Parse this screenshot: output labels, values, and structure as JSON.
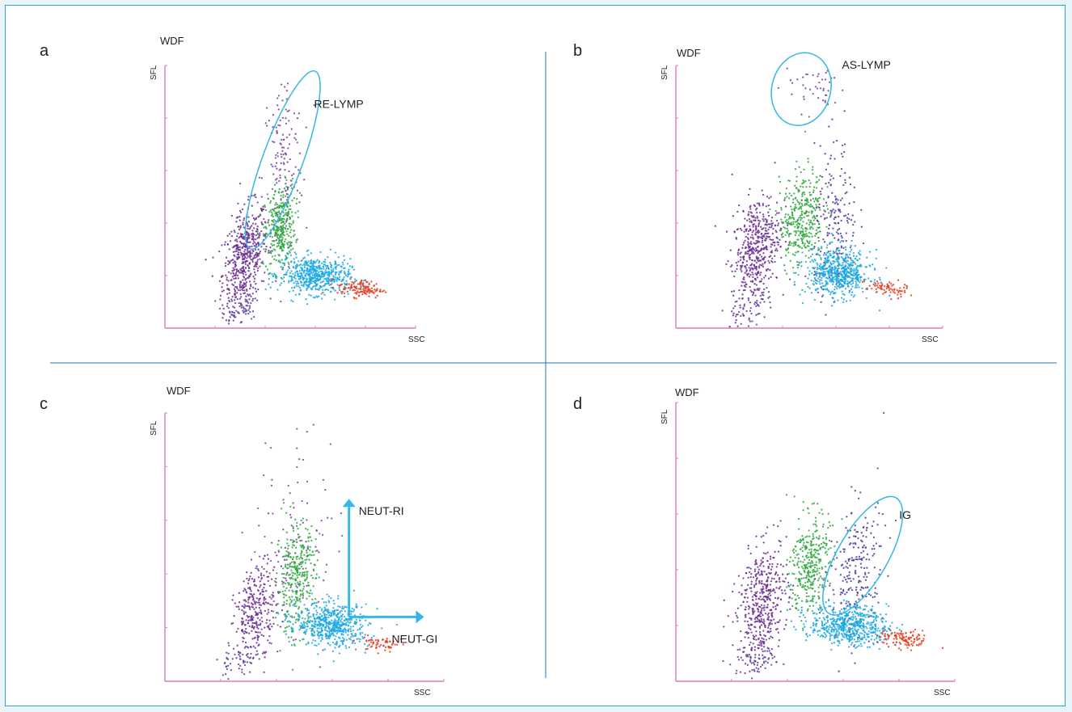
{
  "colors": {
    "background": "#e7f5fc",
    "border": "#2f9fd6",
    "divider": "#1f74b6",
    "axis": "#d47fb6",
    "annotation": "#35b7e6",
    "lymph": "#6a2c91",
    "mono": "#2ca63c",
    "neut": "#19a8e3",
    "eos": "#e2391b",
    "ig": "#4a3a9a"
  },
  "chart_data": [
    {
      "panel_letter": "a",
      "type": "scatter",
      "title": "WDF",
      "xlabel": "SSC",
      "ylabel": "SFL",
      "xlim": [
        0,
        100
      ],
      "ylim": [
        0,
        100
      ],
      "grid": false,
      "clusters": [
        {
          "population": "lymphocytes",
          "color": "#6a2c91",
          "center": [
            32,
            27
          ],
          "spread": [
            4.5,
            9
          ],
          "tilt": 0.6,
          "n": 520
        },
        {
          "population": "re-lymp",
          "color": "#7a3fa0",
          "center": [
            47,
            62
          ],
          "spread": [
            4,
            18
          ],
          "tilt": 0.25,
          "n": 150
        },
        {
          "population": "monocytes",
          "color": "#2ca63c",
          "center": [
            46,
            38
          ],
          "spread": [
            3,
            8
          ],
          "tilt": 0.3,
          "n": 330
        },
        {
          "population": "neutrophils",
          "color": "#19a8e3",
          "center": [
            60,
            20
          ],
          "spread": [
            7,
            3.5
          ],
          "tilt": -0.15,
          "n": 560
        },
        {
          "population": "eosinophils",
          "color": "#e2391b",
          "center": [
            78,
            15
          ],
          "spread": [
            4.5,
            1.6
          ],
          "tilt": -0.3,
          "n": 130
        },
        {
          "population": "debris",
          "color": "#5a3c9a",
          "center": [
            30,
            8
          ],
          "spread": [
            4,
            3
          ],
          "tilt": 0.6,
          "n": 60
        }
      ],
      "annotations": [
        {
          "label": "RE-LYMP",
          "shape": "ellipse",
          "center": [
            47,
            64
          ],
          "radii": [
            8,
            36
          ],
          "rotation": 20
        }
      ]
    },
    {
      "panel_letter": "b",
      "type": "scatter",
      "title": "WDF",
      "xlabel": "SSC",
      "ylabel": "SFL",
      "xlim": [
        0,
        100
      ],
      "ylim": [
        0,
        100
      ],
      "grid": false,
      "clusters": [
        {
          "population": "lymphocytes",
          "color": "#6a2c91",
          "center": [
            30,
            30
          ],
          "spread": [
            4.5,
            10
          ],
          "tilt": 0.6,
          "n": 480
        },
        {
          "population": "as-lymp",
          "color": "#7a3fa0",
          "center": [
            52,
            92
          ],
          "spread": [
            6,
            5
          ],
          "tilt": 0.0,
          "n": 45
        },
        {
          "population": "monocytes",
          "color": "#2ca63c",
          "center": [
            47,
            42
          ],
          "spread": [
            4,
            9
          ],
          "tilt": 0.3,
          "n": 360
        },
        {
          "population": "ig-region",
          "color": "#4a3a9a",
          "center": [
            60,
            38
          ],
          "spread": [
            4,
            16
          ],
          "tilt": 0.15,
          "n": 200
        },
        {
          "population": "neutrophils",
          "color": "#19a8e3",
          "center": [
            61,
            21
          ],
          "spread": [
            6,
            4.5
          ],
          "tilt": -0.1,
          "n": 580
        },
        {
          "population": "eosinophils",
          "color": "#e2391b",
          "center": [
            79,
            15
          ],
          "spread": [
            4,
            1.6
          ],
          "tilt": -0.3,
          "n": 70
        },
        {
          "population": "debris",
          "color": "#5a3c9a",
          "center": [
            28,
            8
          ],
          "spread": [
            4,
            3
          ],
          "tilt": 0.6,
          "n": 50
        }
      ],
      "annotations": [
        {
          "label": "AS-LYMP",
          "shape": "ellipse",
          "center": [
            47,
            91
          ],
          "radii": [
            11,
            14
          ],
          "rotation": 15
        }
      ]
    },
    {
      "panel_letter": "c",
      "type": "scatter",
      "title": "WDF",
      "xlabel": "SSC",
      "ylabel": "SFL",
      "xlim": [
        0,
        100
      ],
      "ylim": [
        0,
        100
      ],
      "grid": false,
      "clusters": [
        {
          "population": "lymphocytes",
          "color": "#6a2c91",
          "center": [
            33,
            27
          ],
          "spread": [
            4,
            8
          ],
          "tilt": 0.6,
          "n": 300
        },
        {
          "population": "sparse-lymp",
          "color": "#7a3fa0",
          "center": [
            47,
            52
          ],
          "spread": [
            8,
            22
          ],
          "tilt": 0.1,
          "n": 110
        },
        {
          "population": "monocytes",
          "color": "#2ca63c",
          "center": [
            47,
            38
          ],
          "spread": [
            3.5,
            10
          ],
          "tilt": 0.25,
          "n": 330
        },
        {
          "population": "neutrophils",
          "color": "#19a8e3",
          "center": [
            60,
            21
          ],
          "spread": [
            6.5,
            4
          ],
          "tilt": -0.15,
          "n": 560
        },
        {
          "population": "eosinophils",
          "color": "#e2391b",
          "center": [
            77,
            14
          ],
          "spread": [
            4,
            1.6
          ],
          "tilt": -0.3,
          "n": 60
        },
        {
          "population": "debris",
          "color": "#5a3c9a",
          "center": [
            26,
            7
          ],
          "spread": [
            4,
            3
          ],
          "tilt": 0.6,
          "n": 55
        }
      ],
      "annotations": [
        {
          "label": "NEUT-RI",
          "shape": "arrow",
          "from": [
            66,
            24
          ],
          "to": [
            66,
            65
          ]
        },
        {
          "label": "NEUT-GI",
          "shape": "arrow",
          "from": [
            66,
            24
          ],
          "to": [
            90,
            24
          ]
        }
      ]
    },
    {
      "panel_letter": "d",
      "type": "scatter",
      "title": "WDF",
      "xlabel": "SSC",
      "ylabel": "SFL",
      "xlim": [
        0,
        100
      ],
      "ylim": [
        0,
        100
      ],
      "grid": false,
      "clusters": [
        {
          "population": "lymphocytes",
          "color": "#6a2c91",
          "center": [
            31,
            28
          ],
          "spread": [
            4.5,
            10
          ],
          "tilt": 0.6,
          "n": 470
        },
        {
          "population": "monocytes",
          "color": "#2ca63c",
          "center": [
            48,
            42
          ],
          "spread": [
            3.5,
            9
          ],
          "tilt": 0.3,
          "n": 340
        },
        {
          "population": "immature-granulocytes",
          "color": "#4a3a9a",
          "center": [
            65,
            40
          ],
          "spread": [
            5,
            12
          ],
          "tilt": 0.35,
          "n": 220
        },
        {
          "population": "neutrophils",
          "color": "#19a8e3",
          "center": [
            62,
            20
          ],
          "spread": [
            7,
            3.5
          ],
          "tilt": -0.15,
          "n": 560
        },
        {
          "population": "eosinophils",
          "color": "#e2391b",
          "center": [
            82,
            15
          ],
          "spread": [
            4.5,
            1.6
          ],
          "tilt": -0.3,
          "n": 110
        },
        {
          "population": "debris",
          "color": "#5a3c9a",
          "center": [
            30,
            7
          ],
          "spread": [
            4,
            3
          ],
          "tilt": 0.6,
          "n": 50
        }
      ],
      "annotations": [
        {
          "label": "IG",
          "shape": "ellipse",
          "center": [
            67,
            45
          ],
          "radii": [
            9,
            24
          ],
          "rotation": 30
        }
      ]
    }
  ]
}
